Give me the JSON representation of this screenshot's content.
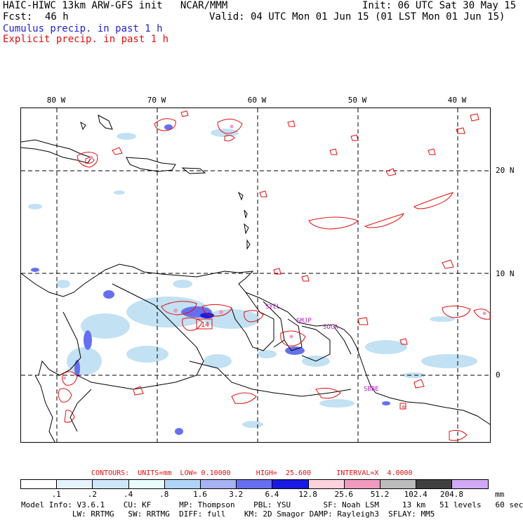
{
  "header": {
    "title": "HAIC-HIWC 13km ARW-GFS init   NCAR/MMM",
    "init": "Init: 06 UTC Sat 30 May 15",
    "fcst_label": "Fcst:",
    "fcst_value": "46 h",
    "valid": "Valid: 04 UTC Mon 01 Jun 15 (01 LST Mon 01 Jun 15)",
    "cumulus": "Cumulus precip. in past 1 h",
    "explicit": "Explicit precip. in past 1 h"
  },
  "map": {
    "lon_labels": [
      "80 W",
      "70 W",
      "60 W",
      "50 W",
      "40 W"
    ],
    "lat_labels": [
      "20 N",
      "10 N",
      "0"
    ],
    "stations": [
      "SYEL",
      "SMJP",
      "SOCA",
      "SBBE",
      "14"
    ],
    "colors": {
      "coast": "#000000",
      "explicit": "#e01010",
      "cumulus_light": "#b8dcf2",
      "cumulus_mid": "#6670ee",
      "cumulus_heavy": "#1a1ae0"
    }
  },
  "contours": {
    "text": "CONTOURS:  UNITS=mm  LOW= 0.10000      HIGH=  25.600      INTERVAL=X  4.0000"
  },
  "colorbar": {
    "labels": [
      ".1",
      ".2",
      ".4",
      ".8",
      "1.6",
      "3.2",
      "6.4",
      "12.8",
      "25.6",
      "51.2",
      "102.4",
      "204.8"
    ],
    "unit": "mm",
    "colors": [
      "#ffffff",
      "#e6f2fc",
      "#cfe6f8",
      "#e8fcfc",
      "#b0d4f6",
      "#a6b2f2",
      "#6670ee",
      "#1a1ae0",
      "#fcd2dc",
      "#f09ac0",
      "#bcbcbc",
      "#404040",
      "#d0a8f4"
    ]
  },
  "model_info": {
    "line1": "Model Info: V3.6.1    CU: KF      MP: Thompson    PBL: YSU       SF: Noah LSM     13 km   51 levels   60 sec",
    "line2": "           LW: RRTMG   SW: RRTMG  DIFF: full    KM: 2D Smagor DAMP: Rayleigh3  SFLAY: MM5"
  }
}
